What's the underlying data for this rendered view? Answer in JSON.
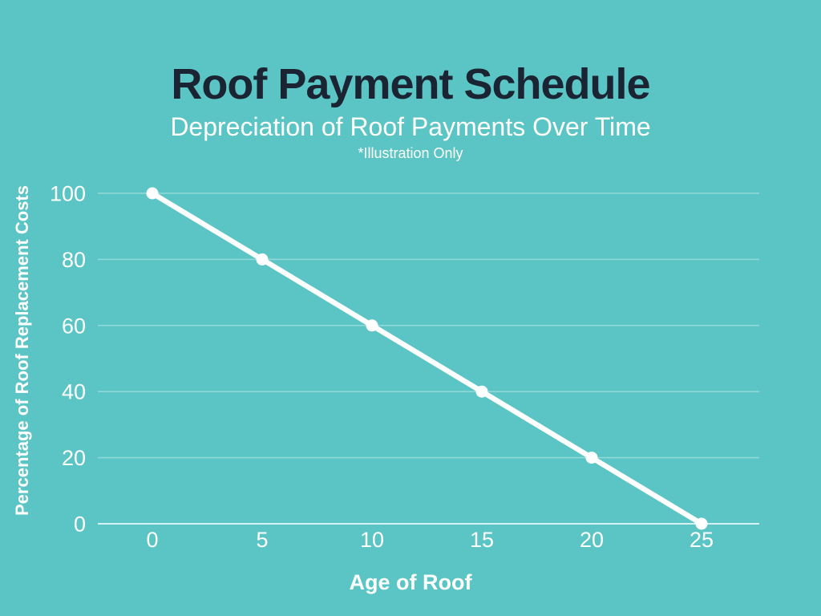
{
  "header": {
    "title": "Roof Payment Schedule",
    "subtitle": "Depreciation of Roof Payments Over Time",
    "note": "*Illustration Only"
  },
  "chart_data": {
    "type": "line",
    "title": "Roof Payment Schedule",
    "subtitle": "Depreciation of Roof Payments Over Time",
    "annotation": "*Illustration Only",
    "x": [
      0,
      5,
      10,
      15,
      20,
      25
    ],
    "series": [
      {
        "name": "Percentage of roof replacement costs",
        "values": [
          100,
          80,
          60,
          40,
          20,
          0
        ]
      }
    ],
    "xlabel": "Age of Roof",
    "ylabel": "Percentage of Roof Replacement Costs",
    "xlim": [
      0,
      25
    ],
    "ylim": [
      0,
      100
    ],
    "x_ticks": [
      0,
      5,
      10,
      15,
      20,
      25
    ],
    "y_ticks": [
      0,
      20,
      40,
      60,
      80,
      100
    ],
    "grid": "horizontal",
    "legend": "none",
    "marker": "circle"
  },
  "colors": {
    "background": "#5bc5c5",
    "title_text": "#1b2433",
    "chart_text": "#ffffff",
    "line": "#ffffff",
    "marker": "#ffffff",
    "gridline": "rgba(255,255,255,0.35)",
    "zero_line": "rgba(255,255,255,0.75)"
  }
}
